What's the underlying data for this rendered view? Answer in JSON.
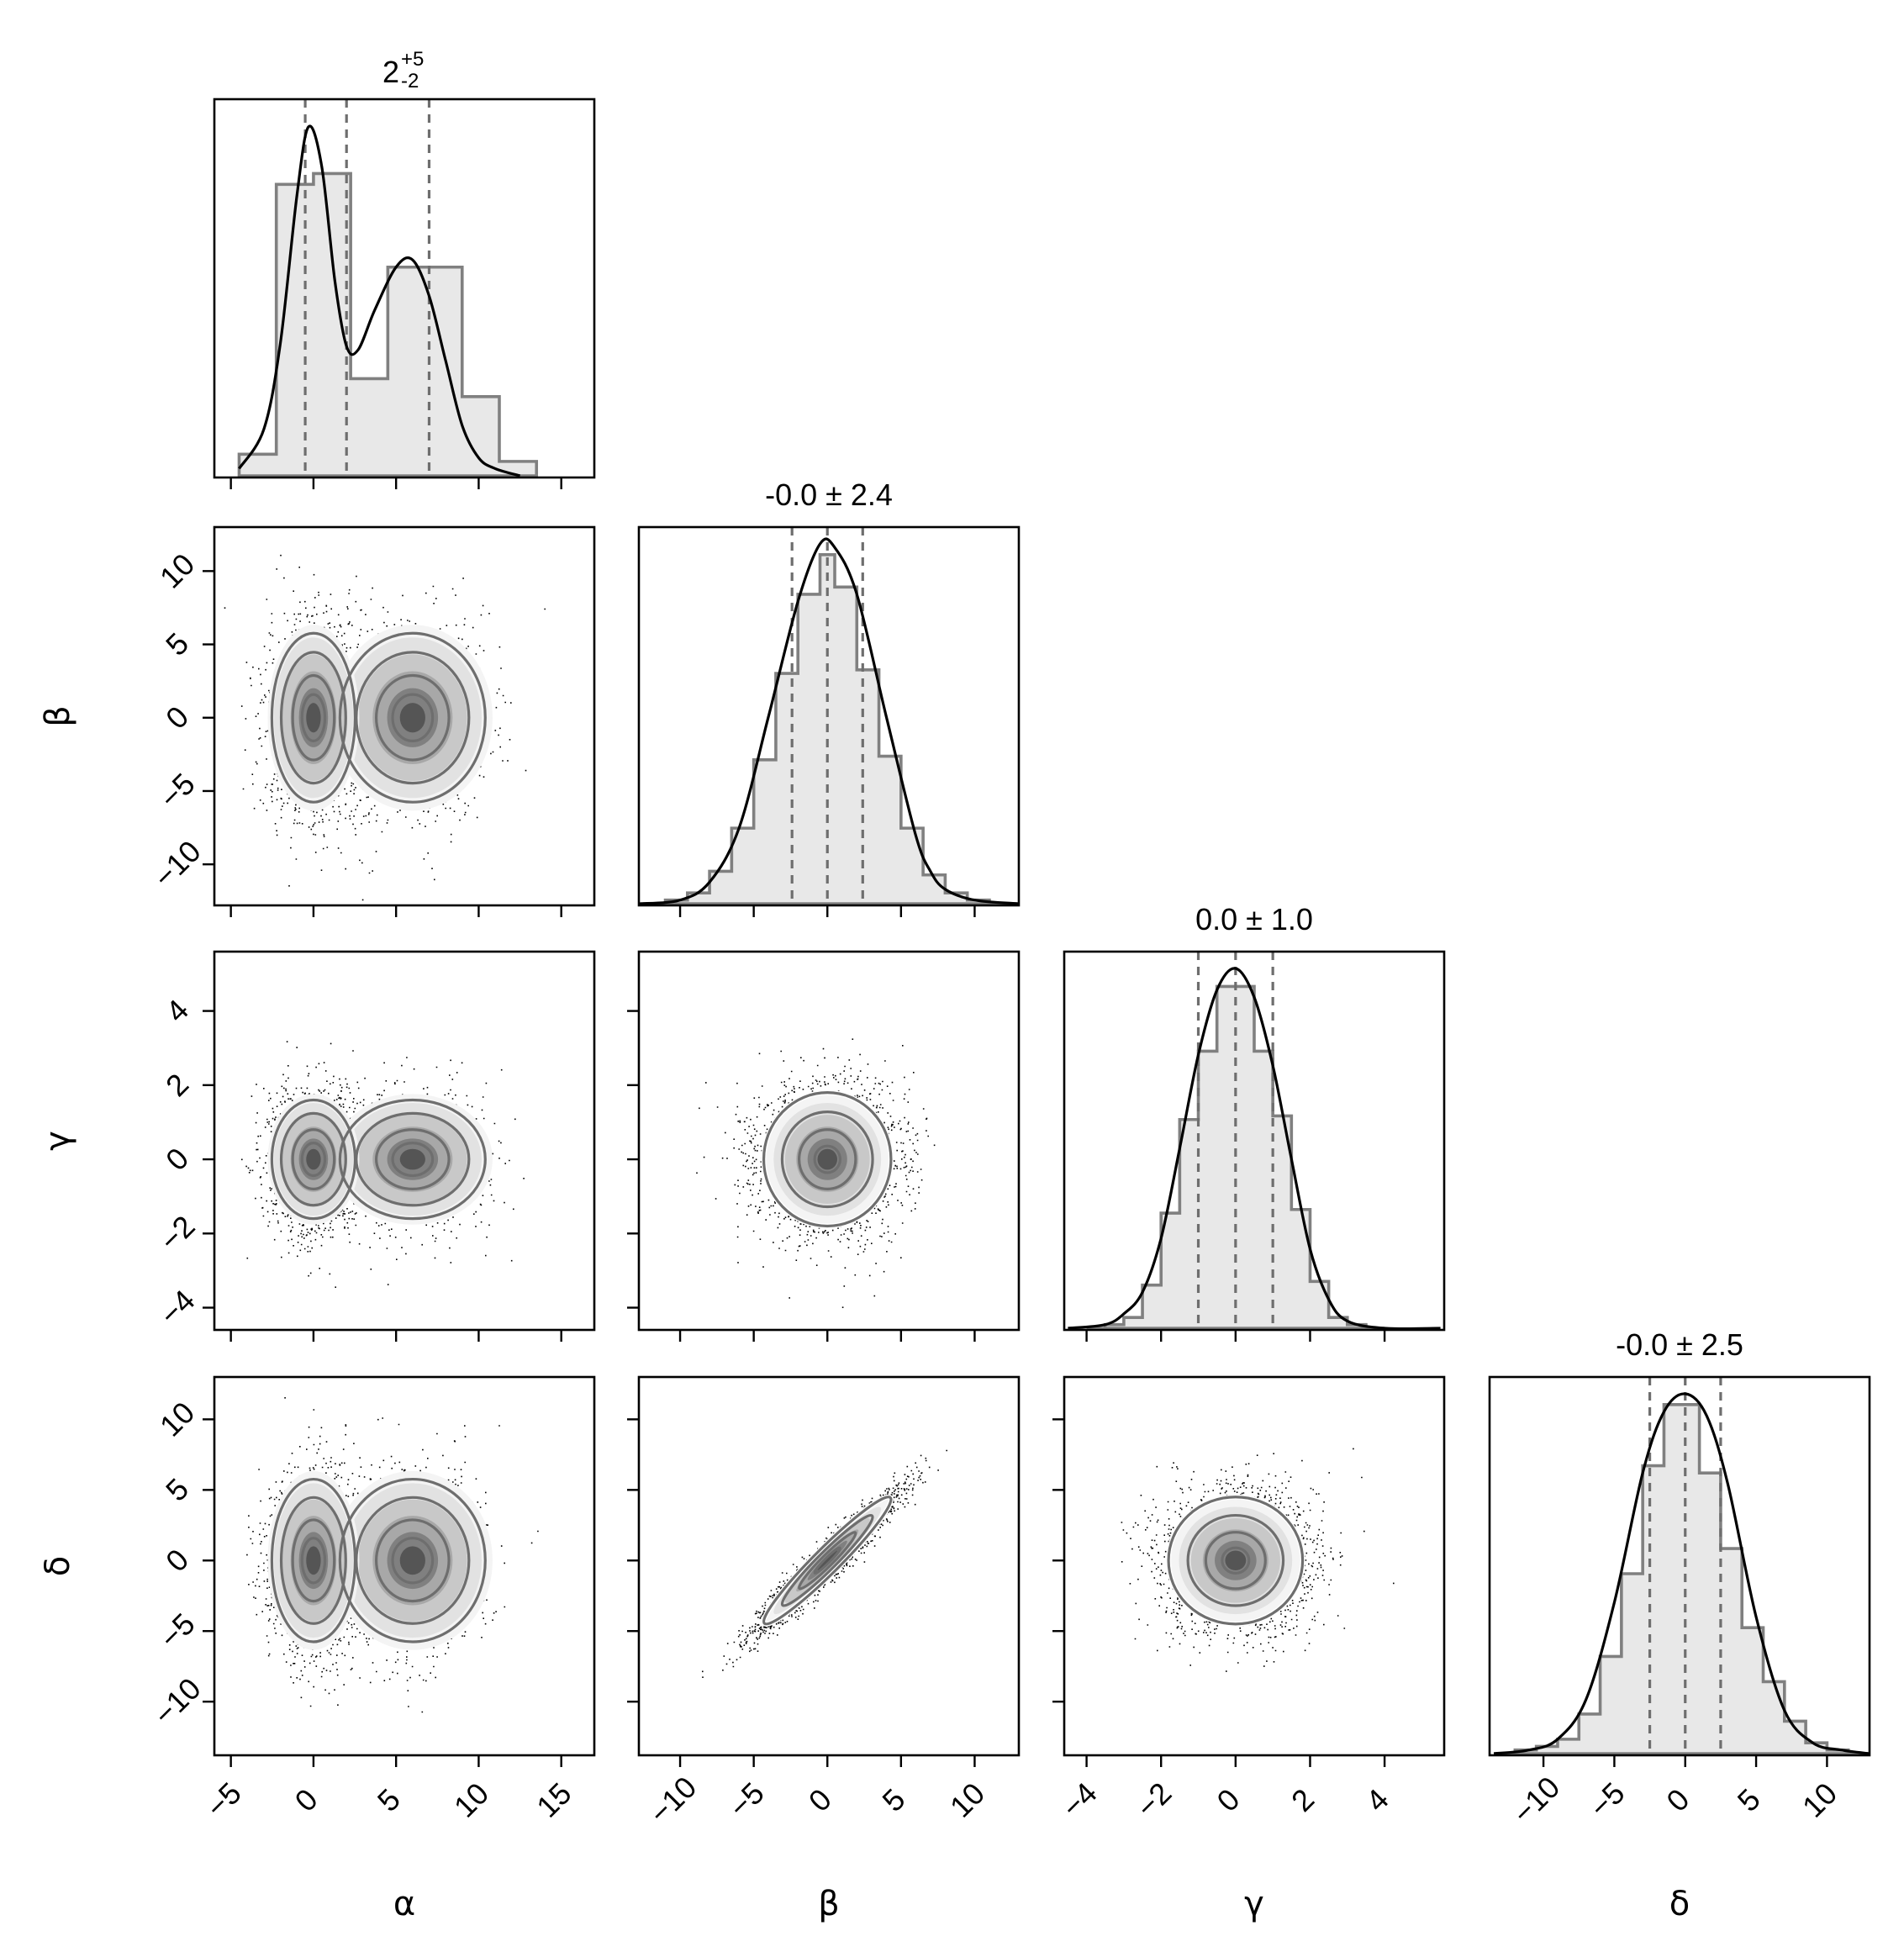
{
  "chart_data": {
    "type": "corner",
    "parameters": [
      "α",
      "β",
      "γ",
      "δ"
    ],
    "titles": [
      {
        "parameter": "α",
        "median": "2",
        "plus": "+5",
        "minus": "-2"
      },
      {
        "parameter": "β",
        "text": "-0.0 ± 2.4"
      },
      {
        "parameter": "γ",
        "text": "0.0 ± 1.0"
      },
      {
        "parameter": "δ",
        "text": "-0.0 ± 2.5"
      }
    ],
    "axis_ranges": {
      "α": [
        -6,
        17
      ],
      "β": [
        -12.8,
        13
      ],
      "γ": [
        -4.6,
        5.6
      ],
      "δ": [
        -13.8,
        13
      ]
    },
    "ticks": {
      "α": [
        -5,
        0,
        5,
        10,
        15
      ],
      "β": [
        -10,
        -5,
        0,
        5,
        10
      ],
      "γ": [
        -4,
        -2,
        0,
        2,
        4
      ],
      "δ": [
        -10,
        -5,
        0,
        5,
        10
      ]
    },
    "marginals": [
      {
        "parameter": "α",
        "quantiles": [
          -0.5,
          2,
          7
        ],
        "hist_edges": [
          -4.5,
          -2.25,
          0,
          2.25,
          4.5,
          6.75,
          9,
          11.25,
          13.5
        ],
        "hist_heights": [
          0.06,
          0.81,
          0.84,
          0.27,
          0.58,
          0.58,
          0.22,
          0.04
        ],
        "kde": [
          [
            -4.5,
            0.02
          ],
          [
            -3,
            0.13
          ],
          [
            -2,
            0.37
          ],
          [
            -1,
            0.78
          ],
          [
            -0.3,
            0.97
          ],
          [
            0.5,
            0.86
          ],
          [
            1.3,
            0.54
          ],
          [
            2,
            0.36
          ],
          [
            2.7,
            0.35
          ],
          [
            3.7,
            0.46
          ],
          [
            5,
            0.58
          ],
          [
            6,
            0.6
          ],
          [
            7,
            0.5
          ],
          [
            8,
            0.32
          ],
          [
            9,
            0.14
          ],
          [
            10,
            0.05
          ],
          [
            11,
            0.02
          ],
          [
            12.5,
            0
          ]
        ]
      },
      {
        "parameter": "β",
        "quantiles": [
          -2.4,
          0,
          2.4
        ],
        "hist_edges": [
          -12.5,
          -11,
          -9.5,
          -8,
          -6.5,
          -5,
          -3.5,
          -2,
          -0.5,
          0.5,
          2,
          3.5,
          5,
          6.5,
          8,
          9.5,
          11,
          12.5
        ],
        "hist_heights": [
          0,
          0.01,
          0.03,
          0.09,
          0.21,
          0.4,
          0.64,
          0.86,
          0.97,
          0.88,
          0.65,
          0.41,
          0.21,
          0.08,
          0.03,
          0.01,
          0
        ],
        "kde": [
          [
            -12.8,
            0
          ],
          [
            -10,
            0.01
          ],
          [
            -8,
            0.06
          ],
          [
            -6,
            0.21
          ],
          [
            -4,
            0.52
          ],
          [
            -2,
            0.84
          ],
          [
            -0.5,
            1.0
          ],
          [
            0.5,
            0.99
          ],
          [
            2,
            0.86
          ],
          [
            4,
            0.52
          ],
          [
            6,
            0.19
          ],
          [
            7,
            0.09
          ],
          [
            8,
            0.04
          ],
          [
            10,
            0.01
          ],
          [
            13,
            0
          ]
        ]
      },
      {
        "parameter": "γ",
        "quantiles": [
          -1.0,
          0,
          1.0
        ],
        "hist_edges": [
          -4,
          -3.5,
          -3,
          -2.5,
          -2,
          -1.5,
          -1,
          -0.5,
          0,
          0.5,
          1,
          1.5,
          2,
          2.5,
          3,
          3.5,
          4
        ],
        "hist_heights": [
          0,
          0.01,
          0.03,
          0.12,
          0.32,
          0.58,
          0.77,
          0.95,
          0.95,
          0.77,
          0.59,
          0.33,
          0.13,
          0.03,
          0.01,
          0
        ],
        "kde": [
          [
            -4.5,
            0
          ],
          [
            -3.5,
            0.01
          ],
          [
            -3,
            0.04
          ],
          [
            -2.5,
            0.1
          ],
          [
            -2,
            0.25
          ],
          [
            -1.5,
            0.5
          ],
          [
            -1,
            0.76
          ],
          [
            -0.5,
            0.94
          ],
          [
            0,
            1.0
          ],
          [
            0.5,
            0.92
          ],
          [
            1,
            0.73
          ],
          [
            1.5,
            0.47
          ],
          [
            2,
            0.22
          ],
          [
            2.5,
            0.08
          ],
          [
            3,
            0.02
          ],
          [
            4,
            0
          ],
          [
            5.5,
            0
          ]
        ]
      },
      {
        "parameter": "δ",
        "quantiles": [
          -2.5,
          0,
          2.5
        ],
        "hist_edges": [
          -13.5,
          -12,
          -10.5,
          -9,
          -7.5,
          -6,
          -4.5,
          -3,
          -1.5,
          -0.5,
          1,
          2.5,
          4,
          5.5,
          7,
          8.5,
          10,
          11.5,
          13
        ],
        "hist_heights": [
          0,
          0.01,
          0.02,
          0.04,
          0.11,
          0.27,
          0.5,
          0.8,
          0.97,
          0.97,
          0.78,
          0.57,
          0.35,
          0.2,
          0.09,
          0.03,
          0.01,
          0
        ],
        "kde": [
          [
            -13.5,
            0
          ],
          [
            -11,
            0.01
          ],
          [
            -9,
            0.04
          ],
          [
            -7,
            0.15
          ],
          [
            -5,
            0.42
          ],
          [
            -3,
            0.78
          ],
          [
            -1.5,
            0.95
          ],
          [
            0,
            1.0
          ],
          [
            1.5,
            0.94
          ],
          [
            3,
            0.75
          ],
          [
            5,
            0.38
          ],
          [
            7,
            0.12
          ],
          [
            9,
            0.03
          ],
          [
            11,
            0.01
          ],
          [
            13,
            0
          ]
        ]
      }
    ],
    "joint": [
      {
        "x": "α",
        "y": "β",
        "model": "bimodal",
        "modes": [
          [
            0,
            0,
            1.4,
            3.6,
            0.6
          ],
          [
            6,
            0,
            2.2,
            3.6,
            0.4
          ]
        ]
      },
      {
        "x": "α",
        "y": "γ",
        "model": "bimodal",
        "modes": [
          [
            0,
            0,
            1.4,
            1.0,
            0.6
          ],
          [
            6,
            0,
            2.2,
            1.0,
            0.4
          ]
        ]
      },
      {
        "x": "α",
        "y": "δ",
        "model": "bimodal",
        "modes": [
          [
            0,
            0,
            1.4,
            3.6,
            0.6
          ],
          [
            6,
            0,
            2.2,
            3.6,
            0.4
          ]
        ]
      },
      {
        "x": "β",
        "y": "γ",
        "model": "gaussian",
        "sx": 2.4,
        "sy": 1.0,
        "rho": 0
      },
      {
        "x": "β",
        "y": "δ",
        "model": "gaussian",
        "sx": 2.4,
        "sy": 2.5,
        "rho": 0.96
      },
      {
        "x": "γ",
        "y": "δ",
        "model": "gaussian",
        "sx": 1.0,
        "sy": 2.5,
        "rho": 0
      }
    ],
    "contour_levels_sigma": [
      0.5,
      1.0,
      1.5,
      2.0
    ],
    "grid": false,
    "legend": "none"
  }
}
